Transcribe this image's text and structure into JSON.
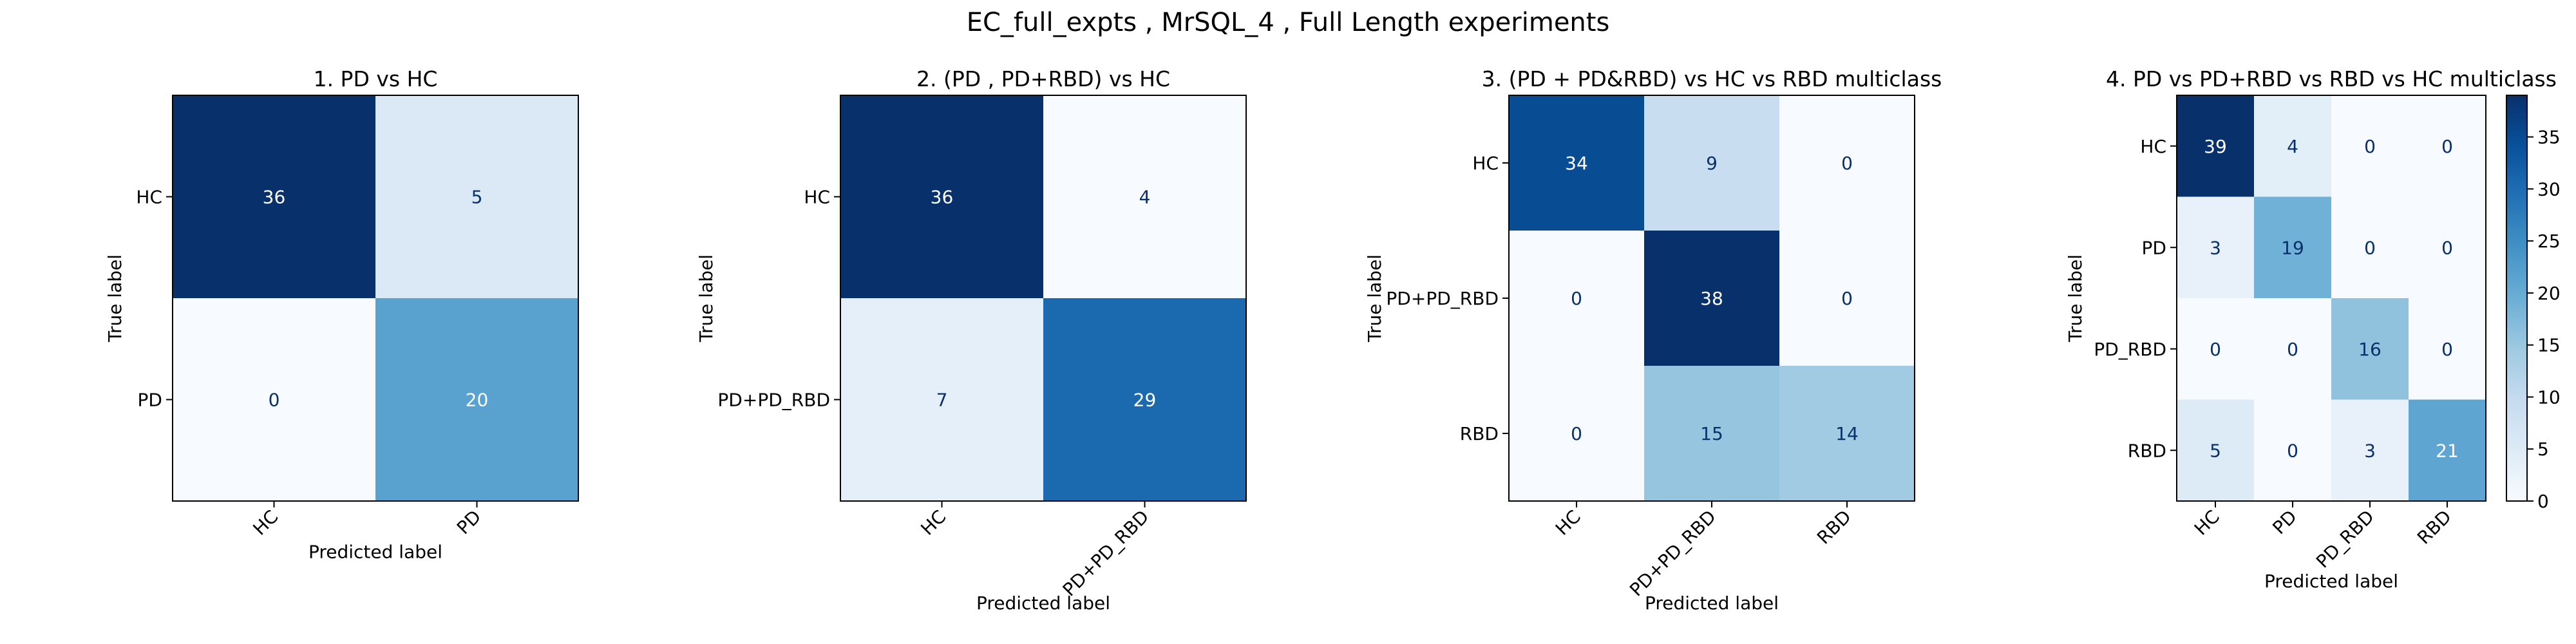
{
  "suptitle": "EC_full_expts , MrSQL_4 , Full Length experiments",
  "colorbar": {
    "ticks": [
      "0",
      "5",
      "10",
      "15",
      "20",
      "25",
      "30",
      "35"
    ]
  },
  "chart_data": [
    {
      "type": "heatmap",
      "title": "1. PD vs HC",
      "xlabel": "Predicted label",
      "ylabel": "True label",
      "row_labels": [
        "HC",
        "PD"
      ],
      "col_labels": [
        "HC",
        "PD"
      ],
      "values": [
        [
          36,
          5
        ],
        [
          0,
          20
        ]
      ],
      "colormap": "Blues"
    },
    {
      "type": "heatmap",
      "title": "2. (PD , PD+RBD) vs HC",
      "xlabel": "Predicted label",
      "ylabel": "True label",
      "row_labels": [
        "HC",
        "PD+PD_RBD"
      ],
      "col_labels": [
        "HC",
        "PD+PD_RBD"
      ],
      "values": [
        [
          36,
          4
        ],
        [
          7,
          29
        ]
      ],
      "colormap": "Blues"
    },
    {
      "type": "heatmap",
      "title": "3. (PD + PD&RBD) vs HC vs RBD  multiclass",
      "xlabel": "Predicted label",
      "ylabel": "True label",
      "row_labels": [
        "HC",
        "PD+PD_RBD",
        "RBD"
      ],
      "col_labels": [
        "HC",
        "PD+PD_RBD",
        "RBD"
      ],
      "values": [
        [
          34,
          9,
          0
        ],
        [
          0,
          38,
          0
        ],
        [
          0,
          15,
          14
        ]
      ],
      "colormap": "Blues"
    },
    {
      "type": "heatmap",
      "title": "4. PD vs PD+RBD vs RBD vs HC  multiclass",
      "xlabel": "Predicted label",
      "ylabel": "True label",
      "row_labels": [
        "HC",
        "PD",
        "PD_RBD",
        "RBD"
      ],
      "col_labels": [
        "HC",
        "PD",
        "PD_RBD",
        "RBD"
      ],
      "values": [
        [
          39,
          4,
          0,
          0
        ],
        [
          3,
          19,
          0,
          0
        ],
        [
          0,
          0,
          16,
          0
        ],
        [
          5,
          0,
          3,
          21
        ]
      ],
      "colormap": "Blues",
      "colorbar_range": [
        0,
        39
      ]
    }
  ]
}
